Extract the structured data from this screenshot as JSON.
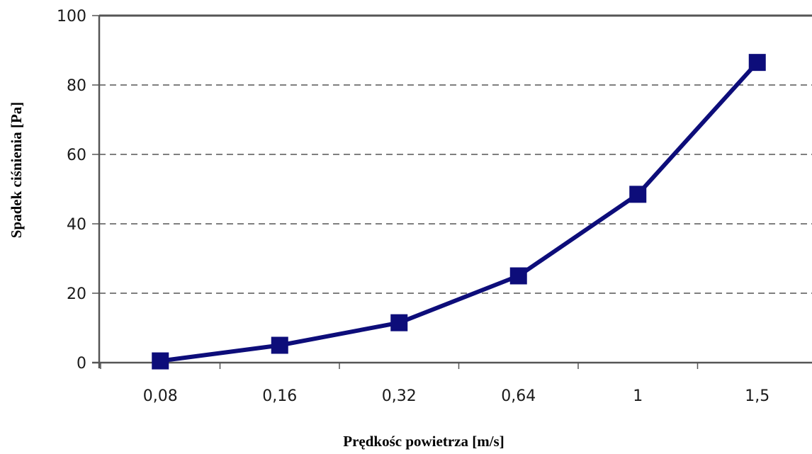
{
  "chart_data": {
    "type": "line",
    "categories": [
      "0,08",
      "0,16",
      "0,32",
      "0,64",
      "1",
      "1,5"
    ],
    "series": [
      {
        "values": [
          0.5,
          5,
          11.5,
          25,
          48.5,
          86.5
        ]
      }
    ],
    "xlabel": "Prędkośc powietrza [m/s]",
    "ylabel": "Spadek ciśnienia [Pa]",
    "ylim": [
      0,
      100
    ],
    "yticks": [
      0,
      20,
      40,
      60,
      80,
      100
    ],
    "grid": "horizontal dashed",
    "colors": {
      "series": "#0d0d7a",
      "grid": "#333333",
      "axis": "#555555"
    }
  }
}
